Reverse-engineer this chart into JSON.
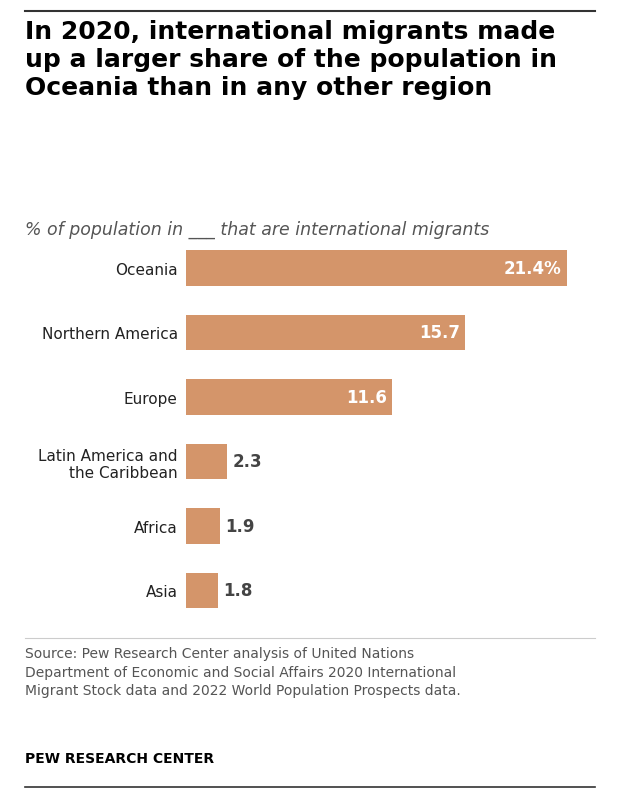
{
  "title": "In 2020, international migrants made\nup a larger share of the population in\nOceania than in any other region",
  "subtitle": "% of population in ___ that are international migrants",
  "categories": [
    "Oceania",
    "Northern America",
    "Europe",
    "Latin America and\nthe Caribbean",
    "Africa",
    "Asia"
  ],
  "values": [
    21.4,
    15.7,
    11.6,
    2.3,
    1.9,
    1.8
  ],
  "labels": [
    "21.4%",
    "15.7",
    "11.6",
    "2.3",
    "1.9",
    "1.8"
  ],
  "bar_color": "#D4956A",
  "label_color_inside": "#ffffff",
  "label_color_outside": "#444444",
  "inside_threshold": 5.0,
  "xlim": [
    0,
    23
  ],
  "source_text": "Source: Pew Research Center analysis of United Nations\nDepartment of Economic and Social Affairs 2020 International\nMigrant Stock data and 2022 World Population Prospects data.",
  "footer_text": "PEW RESEARCH CENTER",
  "background_color": "#ffffff",
  "title_fontsize": 18,
  "subtitle_fontsize": 12.5,
  "label_fontsize": 12,
  "category_fontsize": 11,
  "source_fontsize": 10,
  "footer_fontsize": 10
}
